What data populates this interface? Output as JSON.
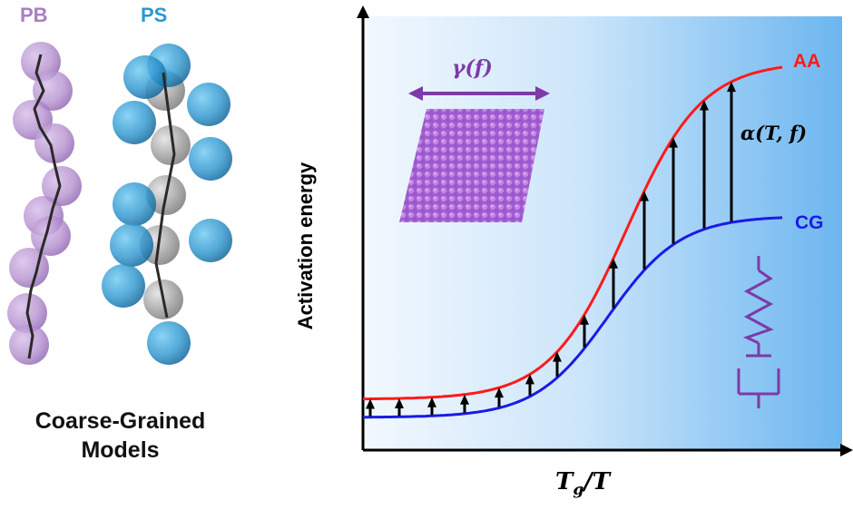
{
  "molecules": {
    "pb_label": "PB",
    "ps_label": "PS",
    "caption_line1": "Coarse-Grained",
    "caption_line2": "Models"
  },
  "plot": {
    "y_axis_label": "Activation energy",
    "x_axis_label_main": "T",
    "x_axis_label_sub": "g",
    "x_axis_label_rest": "/T",
    "curve_aa_label": "AA",
    "curve_cg_label": "CG",
    "alpha_label": "α(T, f)",
    "gamma_label": "γ(f)"
  },
  "colors": {
    "pb": "#a67fc2",
    "ps": "#2a98d4",
    "aa": "#ff1a1a",
    "cg": "#1a1ae6",
    "purple": "#7d3aa8",
    "bg_light": "#f2f8fe",
    "bg_dark": "#6cb6f0"
  }
}
